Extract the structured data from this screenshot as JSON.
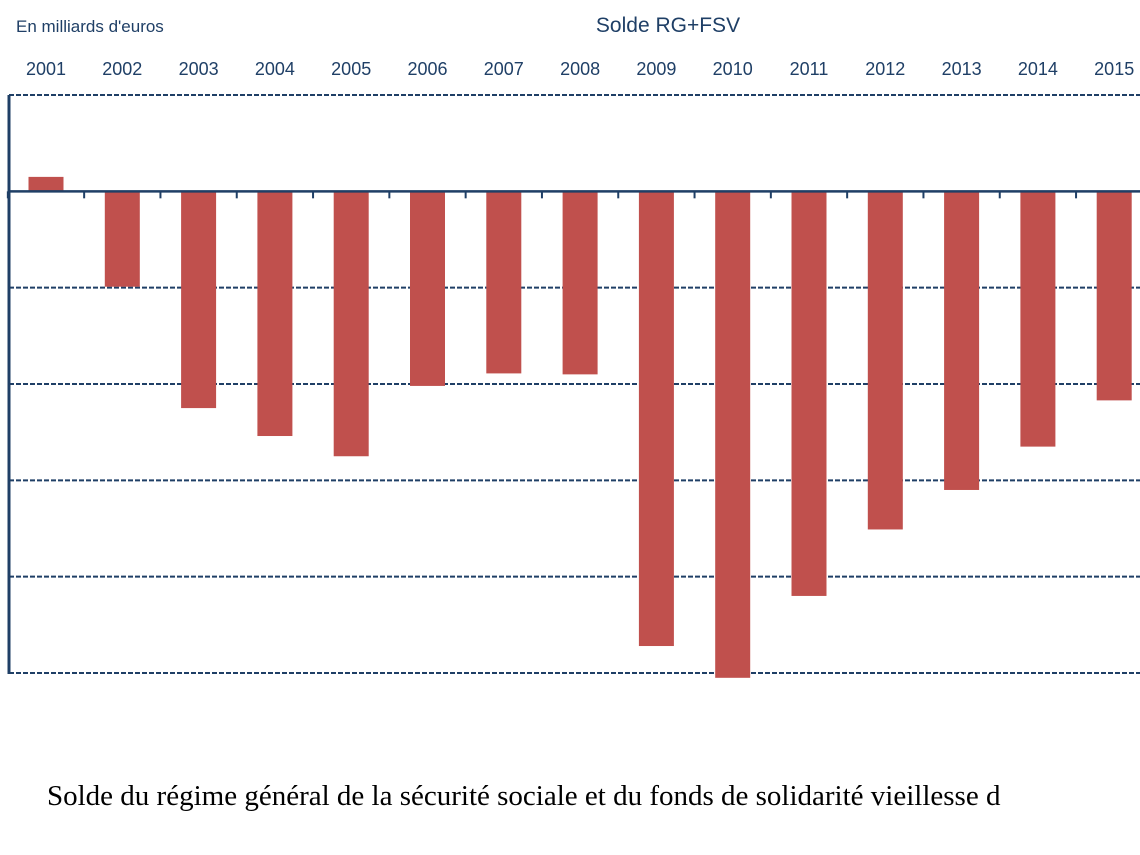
{
  "colors": {
    "bar": "#c0504d",
    "axis": "#1f3f66",
    "grid": "#1f3f66",
    "text": "#1f3f66"
  },
  "chart_data": {
    "type": "bar",
    "title": "Solde RG+FSV",
    "unit_label": "En milliards d'euros",
    "categories": [
      "2001",
      "2002",
      "2003",
      "2004",
      "2005",
      "2006",
      "2007",
      "2008",
      "2009",
      "2010",
      "2011",
      "2012",
      "2013",
      "2014",
      "2015"
    ],
    "series": [
      {
        "values": [
          1.5,
          -9.9,
          -22.5,
          -25.4,
          -27.5,
          -20.2,
          -18.9,
          -19.0,
          -47.2,
          -50.5,
          -42.0,
          -35.1,
          -31.0,
          -26.5,
          -21.7
        ]
      }
    ],
    "ylim": [
      -50,
      10
    ],
    "y_grid_step": 10,
    "tick_labels_position": "top",
    "grid": true,
    "legend": "none"
  },
  "caption": "Solde du régime général de la sécurité sociale et du fonds de solidarité vieillesse d"
}
